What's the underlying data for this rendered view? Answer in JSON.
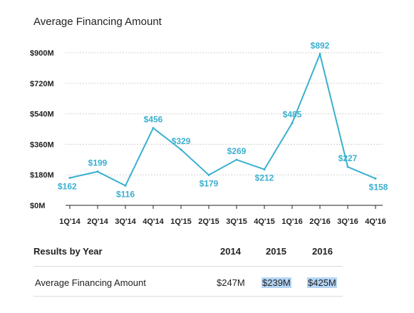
{
  "chart_data": {
    "type": "line",
    "title": "Average Financing Amount",
    "categories": [
      "1Q'14",
      "2Q'14",
      "3Q'14",
      "4Q'14",
      "1Q'15",
      "2Q'15",
      "3Q'15",
      "4Q'15",
      "1Q'16",
      "2Q'16",
      "3Q'16",
      "4Q'16"
    ],
    "series": [
      {
        "values": [
          162,
          199,
          116,
          456,
          329,
          179,
          269,
          212,
          485,
          892,
          227,
          158
        ],
        "labels": [
          "$162",
          "$199",
          "$116",
          "$456",
          "$329",
          "$179",
          "$269",
          "$212",
          "$485",
          "$892",
          "$227",
          "$158"
        ]
      }
    ],
    "yticks": [
      0,
      180,
      360,
      540,
      720,
      900
    ],
    "ytick_labels": [
      "$0M",
      "$180M",
      "$360M",
      "$540M",
      "$720M",
      "$900M"
    ],
    "ylim": [
      0,
      900
    ],
    "grid": "dashed horizontal",
    "line_color": "#3ab0cf"
  },
  "results": {
    "heading": "Results by Year",
    "years": [
      "2014",
      "2015",
      "2016"
    ],
    "row_label": "Average Financing Amount",
    "row_values": [
      "$247M",
      "$239M",
      "$425M"
    ]
  }
}
